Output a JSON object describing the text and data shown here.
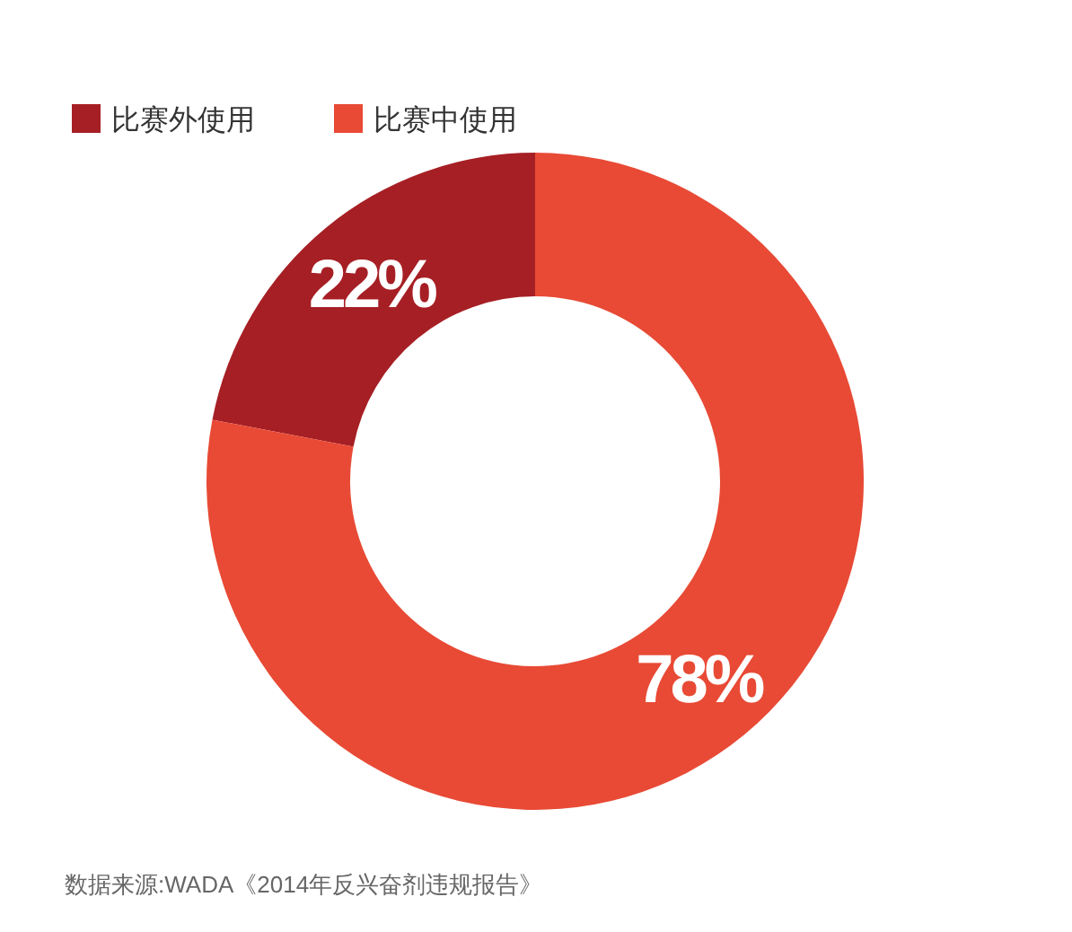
{
  "chart_data": {
    "type": "donut",
    "categories": [
      "比赛外使用",
      "比赛中使用"
    ],
    "values": [
      22,
      78
    ],
    "colors": [
      "#a61f24",
      "#e84a35"
    ],
    "value_labels": [
      "22%",
      "78%"
    ],
    "legend": "top left",
    "annotations": [
      "数据来源:WADA《2014年反兴奋剂违规报告》"
    ]
  }
}
